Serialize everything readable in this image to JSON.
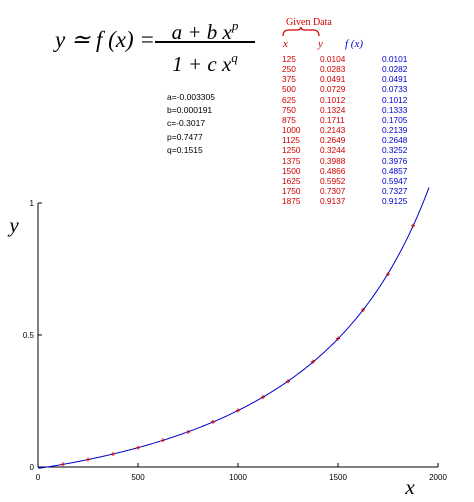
{
  "formula": {
    "lhs": "y ≃ f (x) =",
    "numerator_base": "a + b x",
    "numerator_exp": "p",
    "denominator_base": "1 + c x",
    "denominator_exp": "q"
  },
  "params": [
    "a=-0.003305",
    "b=0.000191",
    "c=-0.3017",
    "p=0.7477",
    "q=0.1515"
  ],
  "table": {
    "label": "Given Data",
    "headers": [
      "x",
      "y",
      "f (x)"
    ],
    "rows": [
      [
        "125",
        "0.0104",
        "0.0101"
      ],
      [
        "250",
        "0.0283",
        "0.0282"
      ],
      [
        "375",
        "0.0491",
        "0.0491"
      ],
      [
        "500",
        "0.0729",
        "0.0733"
      ],
      [
        "625",
        "0.1012",
        "0.1012"
      ],
      [
        "750",
        "0.1324",
        "0.1333"
      ],
      [
        "875",
        "0.1711",
        "0.1705"
      ],
      [
        "1000",
        "0.2143",
        "0.2139"
      ],
      [
        "1125",
        "0.2649",
        "0.2648"
      ],
      [
        "1250",
        "0.3244",
        "0.3252"
      ],
      [
        "1375",
        "0.3988",
        "0.3976"
      ],
      [
        "1500",
        "0.4866",
        "0.4857"
      ],
      [
        "1625",
        "0.5952",
        "0.5947"
      ],
      [
        "1750",
        "0.7307",
        "0.7327"
      ],
      [
        "1875",
        "0.9137",
        "0.9125"
      ]
    ]
  },
  "colors": {
    "given": "#d00000",
    "fit": "#0000cc",
    "axis": "#000000"
  },
  "chart_data": {
    "type": "scatter",
    "title": "",
    "xlabel": "x",
    "ylabel": "y",
    "xlim": [
      0,
      2000
    ],
    "ylim": [
      0,
      1
    ],
    "xticks": [
      "0",
      "500",
      "1000",
      "1500",
      "2000"
    ],
    "yticks": [
      "0",
      "0.5",
      "1"
    ],
    "grid": false,
    "series": [
      {
        "kind": "points",
        "color": "#d00000",
        "x": [
          125,
          250,
          375,
          500,
          625,
          750,
          875,
          1000,
          1125,
          1250,
          1375,
          1500,
          1625,
          1750,
          1875
        ],
        "y": [
          0.0104,
          0.0283,
          0.0491,
          0.0729,
          0.1012,
          0.1324,
          0.1711,
          0.2143,
          0.2649,
          0.3244,
          0.3988,
          0.4866,
          0.5952,
          0.7307,
          0.9137
        ]
      },
      {
        "kind": "curve",
        "color": "#0000cc",
        "params": {
          "a": -0.003305,
          "b": 0.000191,
          "c": -0.3017,
          "p": 0.7477,
          "q": 0.1515
        },
        "x_range": [
          0,
          1955
        ]
      }
    ]
  }
}
